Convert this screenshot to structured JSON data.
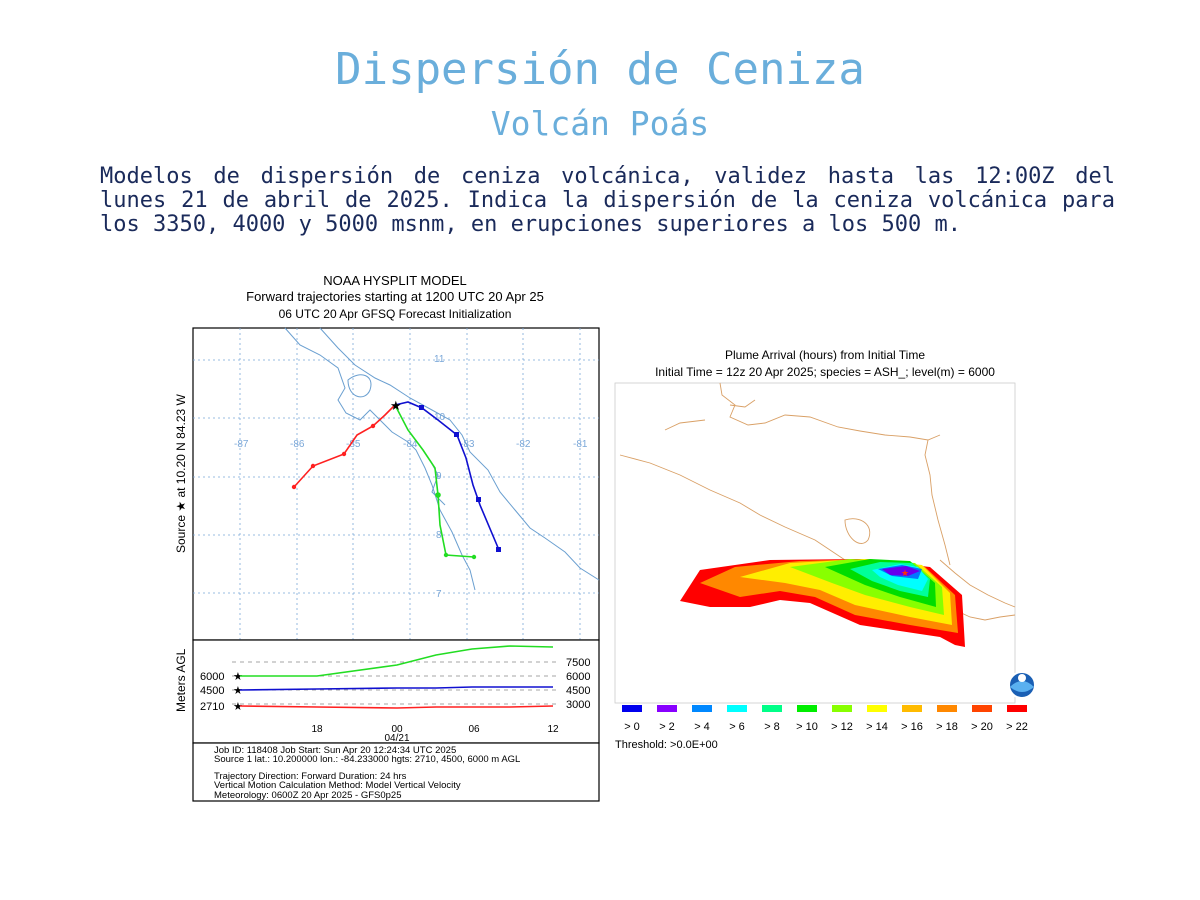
{
  "title": "Dispersión de Ceniza",
  "subtitle": "Volcán Poás",
  "description": "Modelos de dispersión de ceniza volcánica, validez hasta las 12:00Z del lunes 21 de abril de 2025. Indica la dispersión de la ceniza volcánica para los 3350, 4000 y 5000 msnm, en erupciones superiores a los 500 m.",
  "trajectory": {
    "header_line1": "NOAA HYSPLIT MODEL",
    "header_line2": "Forward trajectories starting at 1200 UTC 20 Apr 25",
    "header_line3": "06 UTC 20 Apr    GFSQ  Forecast Initialization",
    "source_label": "Source ★ at  10.20 N  84.23 W",
    "lon_labels": [
      "-87",
      "-86",
      "-85",
      "-84",
      "-83",
      "-82",
      "-81"
    ],
    "lat_labels": [
      "11",
      "10",
      "9",
      "8",
      "7"
    ],
    "y_axis_label": "Meters AGL",
    "height_left": [
      "6000",
      "4500",
      "2710"
    ],
    "height_right": [
      "7500",
      "6000",
      "4500",
      "3000"
    ],
    "time_labels": [
      "18",
      "00",
      "06",
      "12"
    ],
    "date_label": "04/21",
    "info_line1": "Job ID: 118408             Job Start: Sun Apr 20 12:24:34 UTC 2025",
    "info_line2": "Source 1 lat.: 10.200000  lon.: -84.233000  hgts: 2710, 4500, 6000 m AGL",
    "info_line3": "Trajectory Direction: Forward     Duration: 24 hrs",
    "info_line4": "Vertical Motion Calculation Method:      Model Vertical Velocity",
    "info_line5": "Meteorology: 0600Z 20 Apr 2025 - GFS0p25",
    "colors": {
      "low": "#ff2020",
      "mid": "#1010d0",
      "high": "#22dd22"
    }
  },
  "plume": {
    "header_line1": "Plume Arrival (hours) from Initial Time",
    "header_line2": "Initial Time = 12z 20 Apr 2025;  species = ASH_;  level(m) =  6000",
    "legend_labels": [
      "> 0",
      "> 2",
      "> 4",
      "> 6",
      "> 8",
      "> 10",
      "> 12",
      "> 14",
      "> 16",
      "> 18",
      "> 20",
      "> 22"
    ],
    "legend_colors": [
      "#0000ee",
      "#8800ff",
      "#0088ff",
      "#00ffff",
      "#00ff88",
      "#00ee00",
      "#88ff00",
      "#ffff00",
      "#ffbb00",
      "#ff8800",
      "#ff4400",
      "#ff0000"
    ],
    "threshold": "Threshold: >0.0E+00"
  }
}
